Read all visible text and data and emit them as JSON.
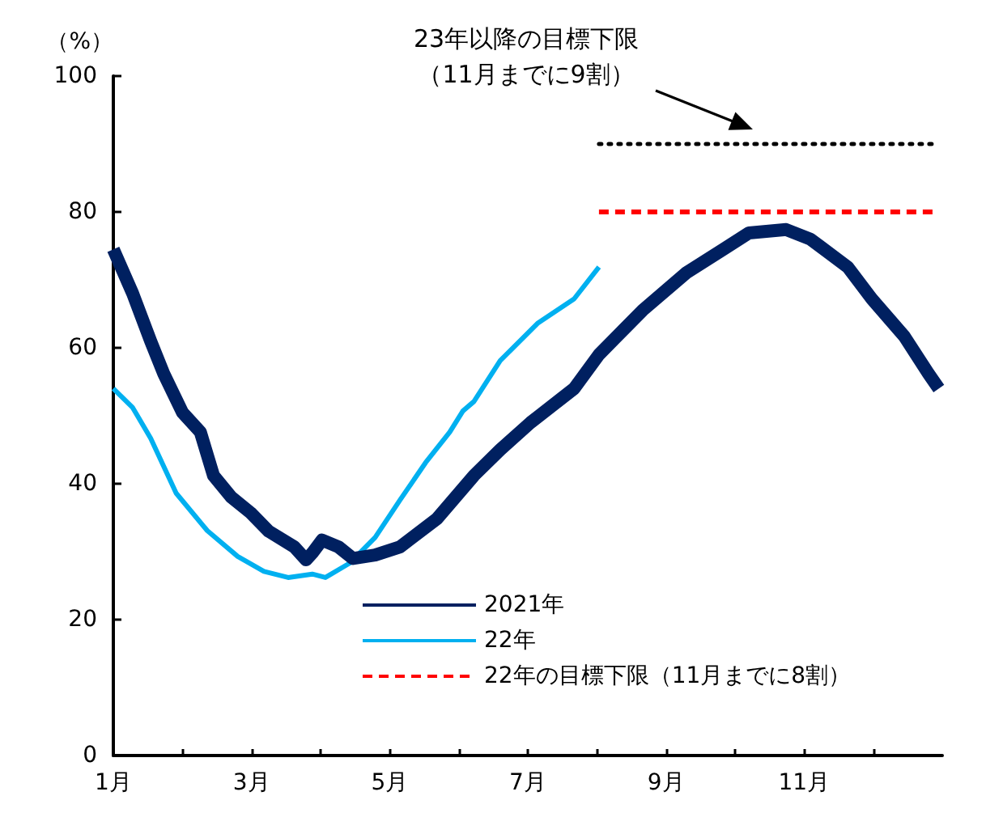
{
  "chart_data": {
    "type": "line",
    "ylabel": "（%）",
    "xlim": [
      1,
      13
    ],
    "ylim": [
      0,
      100
    ],
    "xticks": [
      {
        "value": 1,
        "label": "1月"
      },
      {
        "value": 2,
        "label": null
      },
      {
        "value": 3,
        "label": "3月"
      },
      {
        "value": 4,
        "label": null
      },
      {
        "value": 5,
        "label": "5月"
      },
      {
        "value": 6,
        "label": null
      },
      {
        "value": 7,
        "label": "7月"
      },
      {
        "value": 8,
        "label": null
      },
      {
        "value": 9,
        "label": "9月"
      },
      {
        "value": 10,
        "label": null
      },
      {
        "value": 11,
        "label": "11月"
      },
      {
        "value": 12,
        "label": null
      }
    ],
    "yticks": [
      0,
      20,
      40,
      60,
      80,
      100
    ],
    "grid": false,
    "legend": "bottom",
    "marker": "none",
    "series": [
      {
        "name": "2021年",
        "color": "#002060",
        "line_style": "solid",
        "x": [
          1.0,
          1.28,
          1.54,
          1.73,
          2.0,
          2.26,
          2.45,
          2.71,
          2.99,
          3.25,
          3.62,
          3.79,
          3.88,
          4.02,
          4.26,
          4.47,
          4.79,
          5.15,
          5.68,
          6.22,
          6.6,
          7.04,
          7.67,
          8.03,
          8.66,
          9.29,
          9.83,
          10.2,
          10.74,
          11.09,
          11.63,
          11.98,
          12.45,
          12.8,
          12.95
        ],
        "values": [
          74.5,
          68,
          61,
          56.2,
          50.5,
          47.6,
          41.2,
          38,
          35.7,
          33,
          30.7,
          28.8,
          29.8,
          31.7,
          30.7,
          29,
          29.5,
          30.7,
          34.8,
          41.2,
          45,
          49,
          54,
          59,
          65.5,
          71,
          74.5,
          76.9,
          77.4,
          76,
          71.9,
          67.2,
          61.7,
          56.2,
          54
        ]
      },
      {
        "name": "22年",
        "color": "#00b0f0",
        "line_style": "solid",
        "x": [
          1.0,
          1.28,
          1.54,
          1.91,
          2.36,
          2.8,
          3.18,
          3.53,
          3.88,
          4.07,
          4.42,
          4.79,
          5.15,
          5.52,
          5.87,
          6.06,
          6.22,
          6.6,
          7.14,
          7.67,
          8.03
        ],
        "values": [
          54,
          51.2,
          46.7,
          38.6,
          33.1,
          29.3,
          27.1,
          26.2,
          26.7,
          26.2,
          28.3,
          32.1,
          37.6,
          43.1,
          47.6,
          50.7,
          52.1,
          58.1,
          63.6,
          67.2,
          71.9
        ]
      },
      {
        "name": "22年の目標下限（11月までに8割）",
        "color": "#ff0000",
        "line_style": "dashed",
        "x": [
          8.03,
          12.95
        ],
        "values": [
          80,
          80
        ]
      },
      {
        "color": "#000000",
        "line_style": "dotted",
        "x": [
          8.03,
          12.95
        ],
        "values": [
          90,
          90
        ]
      }
    ],
    "annotations": [
      "23年以降の目標下限（11月までに9割）"
    ]
  }
}
